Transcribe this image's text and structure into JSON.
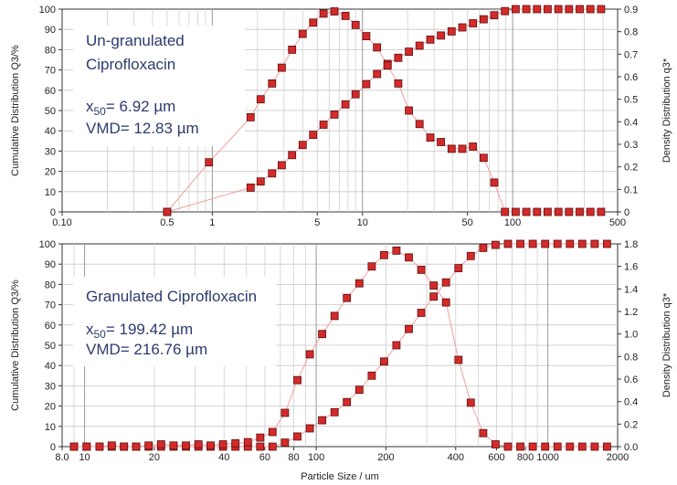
{
  "chart_data": [
    {
      "type": "scatter",
      "x_scale": "log",
      "xlim": [
        0.1,
        500
      ],
      "ylim": [
        0,
        100
      ],
      "y2lim": [
        0,
        0.9
      ],
      "grid": true,
      "xlabel": "",
      "ylabel": "Cumulative  Distribution  Q3/%",
      "y2label": "Density  Distribution  q3*",
      "x_ticks": [
        0.1,
        0.5,
        1,
        5,
        10,
        50,
        100,
        500
      ],
      "x_tick_labels": [
        "0.10",
        "0.5",
        "1",
        "5",
        "10",
        "50",
        "100",
        "500"
      ],
      "y_ticks": [
        0,
        10,
        20,
        30,
        40,
        50,
        60,
        70,
        80,
        90,
        100
      ],
      "y2_ticks": [
        0,
        0.1,
        0.2,
        0.3,
        0.4,
        0.5,
        0.6,
        0.7,
        0.8,
        0.9
      ],
      "annotation": {
        "title_lines": [
          "Un-granulated",
          "Ciprofloxacin"
        ],
        "x50": {
          "prefix": "x",
          "sub": "50",
          "rest": "= 6.92 µm"
        },
        "vmd": "VMD= 12.83 µm"
      },
      "series": [
        {
          "axis": "left",
          "x": [
            0.5,
            1.8,
            2.1,
            2.5,
            2.9,
            3.4,
            4.0,
            4.7,
            5.5,
            6.5,
            7.7,
            9.0,
            10.6,
            12.5,
            14.7,
            17.3,
            20.4,
            24.0,
            28.3,
            33.3,
            39.2,
            46.2,
            54.4,
            64.1,
            75.5,
            88.9,
            104.7,
            123.3,
            145.3,
            171.1,
            201.6,
            237.4,
            279.7,
            329.4,
            388.0
          ],
          "y": [
            0,
            12,
            15,
            19,
            23,
            28,
            33,
            38,
            43,
            48,
            53,
            58,
            63,
            68,
            73,
            76,
            79,
            82,
            85,
            87,
            89,
            91,
            93,
            95,
            97,
            99,
            100,
            100,
            100,
            100,
            100,
            100,
            100,
            100,
            100
          ]
        },
        {
          "axis": "right",
          "x": [
            0.5,
            0.95,
            1.8,
            2.1,
            2.5,
            2.9,
            3.4,
            4.0,
            4.7,
            5.5,
            6.5,
            7.7,
            9.0,
            10.6,
            12.5,
            14.7,
            17.3,
            20.4,
            24.0,
            28.3,
            33.3,
            39.2,
            46.2,
            54.4,
            64.1,
            75.5,
            88.9,
            104.7,
            123.3,
            145.3,
            171.1,
            201.6,
            237.4,
            279.7,
            329.4,
            388.0
          ],
          "y": [
            0,
            0.22,
            0.42,
            0.5,
            0.57,
            0.64,
            0.72,
            0.79,
            0.84,
            0.88,
            0.89,
            0.87,
            0.83,
            0.78,
            0.73,
            0.65,
            0.57,
            0.45,
            0.39,
            0.33,
            0.31,
            0.28,
            0.28,
            0.29,
            0.24,
            0.13,
            0,
            0,
            0,
            0,
            0,
            0,
            0,
            0,
            0,
            0
          ]
        }
      ]
    },
    {
      "type": "scatter",
      "x_scale": "log",
      "xlim": [
        8,
        2000
      ],
      "ylim": [
        0,
        100
      ],
      "y2lim": [
        0,
        1.8
      ],
      "grid": true,
      "xlabel": "Particle Size / um",
      "ylabel": "Cumulative  Distribution  Q3/%",
      "y2label": "Density  Distribution  q3*",
      "x_ticks": [
        8,
        10,
        20,
        40,
        60,
        80,
        100,
        200,
        400,
        600,
        800,
        1000,
        2000
      ],
      "x_tick_labels": [
        "8.0",
        "10",
        "20",
        "40",
        "60",
        "80",
        "100",
        "200",
        "400",
        "600",
        "800",
        "1000",
        "2000"
      ],
      "y_ticks": [
        0,
        10,
        20,
        30,
        40,
        50,
        60,
        70,
        80,
        90,
        100
      ],
      "y2_ticks": [
        0,
        0.2,
        0.4,
        0.6,
        0.8,
        1.0,
        1.2,
        1.4,
        1.6,
        1.8
      ],
      "y2_tick_labels": [
        "0.0",
        "0.2",
        "0.4",
        "0.6",
        "0.8",
        "1.0",
        "1.2",
        "1.4",
        "1.6",
        "1.8"
      ],
      "annotation": {
        "title_lines": [
          "Granulated Ciprofloxacin"
        ],
        "x50": {
          "prefix": "x",
          "sub": "50",
          "rest": "= 199.42 µm"
        },
        "vmd": "VMD= 216.76 µm"
      },
      "series": [
        {
          "axis": "left",
          "x": [
            9.0,
            10.2,
            11.6,
            13.1,
            14.8,
            16.7,
            18.9,
            21.4,
            24.2,
            27.4,
            31.0,
            35.0,
            39.6,
            44.8,
            50.7,
            57.3,
            64.8,
            73.3,
            82.9,
            93.8,
            106.1,
            120.0,
            135.7,
            153.5,
            173.6,
            196.3,
            222.0,
            251.1,
            284.0,
            321.3,
            363.4,
            411.0,
            464.8,
            525.7,
            594.6,
            672.5,
            760.6,
            860.3,
            973.0,
            1100.5,
            1244.7,
            1407.8,
            1592.2,
            1800.8
          ],
          "y": [
            0,
            0,
            0,
            0,
            0,
            0,
            0,
            0,
            0,
            0,
            0,
            0,
            0,
            0,
            0,
            0,
            0,
            2,
            5,
            9,
            13,
            17,
            22,
            28,
            35,
            42,
            50,
            58,
            66,
            74,
            81,
            88,
            94,
            98,
            99.5,
            100,
            100,
            100,
            100,
            100,
            100,
            100,
            100,
            100
          ]
        },
        {
          "axis": "right",
          "x": [
            9.0,
            10.2,
            11.6,
            13.1,
            14.8,
            16.7,
            18.9,
            21.4,
            24.2,
            27.4,
            31.0,
            35.0,
            39.6,
            44.8,
            50.7,
            57.3,
            64.8,
            73.3,
            82.9,
            93.8,
            106.1,
            120.0,
            135.7,
            153.5,
            173.6,
            196.3,
            222.0,
            251.1,
            284.0,
            321.3,
            363.4,
            411.0,
            464.8,
            525.7,
            594.6,
            672.5,
            760.6,
            860.3,
            973.0,
            1100.5,
            1244.7,
            1407.8,
            1592.2,
            1800.8
          ],
          "y": [
            0,
            0,
            0,
            0.01,
            0,
            0,
            0.01,
            0.02,
            0.01,
            0.01,
            0.02,
            0.01,
            0.02,
            0.03,
            0.04,
            0.08,
            0.13,
            0.3,
            0.59,
            0.82,
            1.0,
            1.16,
            1.32,
            1.45,
            1.6,
            1.7,
            1.74,
            1.68,
            1.57,
            1.43,
            1.28,
            0.77,
            0.39,
            0.12,
            0.02,
            0,
            0,
            0,
            0,
            0,
            0,
            0,
            0,
            0
          ]
        }
      ]
    }
  ]
}
